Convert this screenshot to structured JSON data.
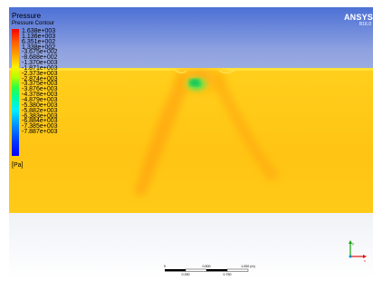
{
  "legend": {
    "title": "Pressure",
    "subtitle": "Pressure Contour",
    "values": [
      "1.638e+003",
      "1.136e+003",
      "6.351e+002",
      "1.338e+002",
      "-3.675e+002",
      "-8.688e+002",
      "-1.370e+003",
      "-1.871e+003",
      "-2.373e+003",
      "-2.874e+003",
      "-3.375e+003",
      "-3.876e+003",
      "-4.378e+003",
      "-4.879e+003",
      "-5.380e+003",
      "-5.882e+003",
      "-6.383e+003",
      "-6.884e+003",
      "-7.385e+003",
      "-7.887e+003"
    ],
    "unit": "[Pa]",
    "colors": [
      "#ff0000",
      "#ff8000",
      "#ffff00",
      "#00ff80",
      "#00ffff",
      "#0000ff"
    ]
  },
  "brand": {
    "name": "ANSYS",
    "version": "R16.0"
  },
  "scale_bar": {
    "labels_top": [
      "0",
      "0.500",
      "1.000 (m)"
    ],
    "labels_bottom": [
      "0.250",
      "0.750"
    ]
  },
  "axis_triad": {
    "x_label": "x",
    "y_label": "y",
    "x_color": "#e01010",
    "y_color": "#10a010",
    "z_color": "#0090c0"
  }
}
